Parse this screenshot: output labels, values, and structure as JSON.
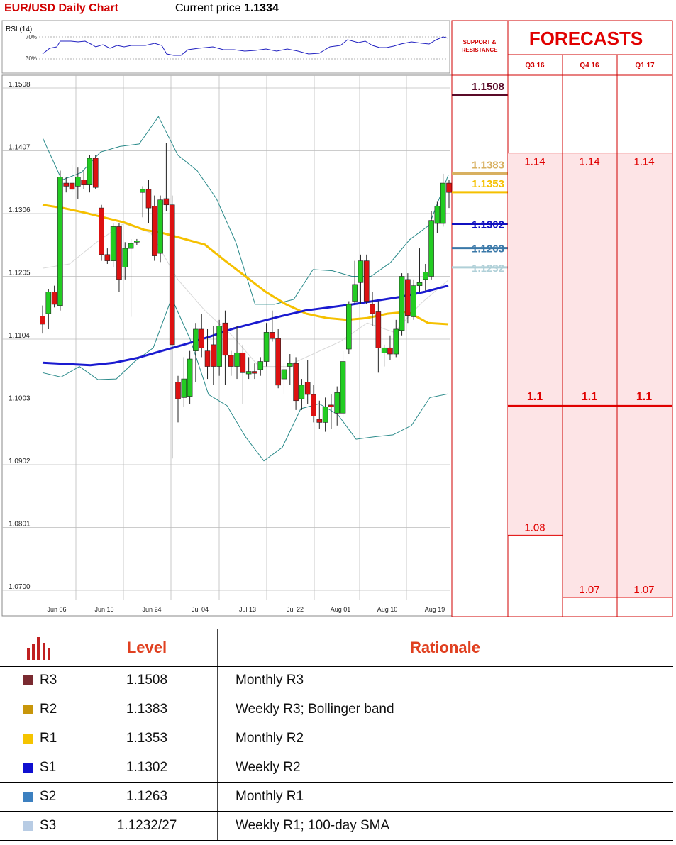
{
  "header": {
    "title": "EUR/USD Daily Chart",
    "price_label": "Current price",
    "price_value": "1.1334"
  },
  "rsi": {
    "label": "RSI (14)",
    "levels": [
      "70%",
      "30%"
    ]
  },
  "sr_panel": {
    "title_line1": "SUPPORT &",
    "title_line2": "RESISTANCE"
  },
  "forecasts": {
    "title": "FORECASTS",
    "quarters": [
      "Q3 16",
      "Q4 16",
      "Q1 17"
    ],
    "accent_color": "#e00000",
    "shade_color": "#fde4e6"
  },
  "chart_data": {
    "type": "candlestick",
    "y_ticks": [
      "1.1508",
      "1.1407",
      "1.1306",
      "1.1205",
      "1.1104",
      "1.1003",
      "1.0902",
      "1.0801",
      "1.0700"
    ],
    "ylim": [
      1.07,
      1.1508
    ],
    "x_ticks": [
      "Jun 06",
      "Jun 15",
      "Jun 24",
      "Jul 04",
      "Jul 13",
      "Jul 22",
      "Aug 01",
      "Aug 10",
      "Aug 19"
    ],
    "grid": true,
    "candles": [
      [
        1.1141,
        1.1158,
        1.1113,
        1.1128
      ],
      [
        1.1145,
        1.1185,
        1.112,
        1.118
      ],
      [
        1.118,
        1.119,
        1.1155,
        1.116
      ],
      [
        1.1158,
        1.1375,
        1.115,
        1.1365
      ],
      [
        1.1355,
        1.1365,
        1.134,
        1.135
      ],
      [
        1.1355,
        1.1385,
        1.134,
        1.1345
      ],
      [
        1.135,
        1.138,
        1.133,
        1.1365
      ],
      [
        1.136,
        1.1375,
        1.1345,
        1.1352
      ],
      [
        1.1352,
        1.14,
        1.134,
        1.1395
      ],
      [
        1.1395,
        1.14,
        1.1345,
        1.1348
      ],
      [
        1.1315,
        1.132,
        1.123,
        1.124
      ],
      [
        1.124,
        1.125,
        1.1225,
        1.123
      ],
      [
        1.123,
        1.129,
        1.122,
        1.1285
      ],
      [
        1.1285,
        1.129,
        1.118,
        1.12
      ],
      [
        1.122,
        1.126,
        1.12,
        1.125
      ],
      [
        1.125,
        1.1265,
        1.114,
        1.1258
      ],
      [
        1.126,
        1.1265,
        1.1255,
        1.1262
      ],
      [
        1.134,
        1.135,
        1.13,
        1.1345
      ],
      [
        1.1345,
        1.136,
        1.129,
        1.1315
      ],
      [
        1.1318,
        1.1335,
        1.123,
        1.1238
      ],
      [
        1.1242,
        1.1335,
        1.1228,
        1.1328
      ],
      [
        1.133,
        1.142,
        1.131,
        1.132
      ],
      [
        1.132,
        1.1335,
        1.0912,
        1.1095
      ],
      [
        1.1035,
        1.1045,
        1.097,
        1.1008
      ],
      [
        1.101,
        1.1075,
        1.0995,
        1.104
      ],
      [
        1.1012,
        1.1085,
        1.1,
        1.1072
      ],
      [
        1.1085,
        1.113,
        1.1035,
        1.112
      ],
      [
        1.112,
        1.1145,
        1.1075,
        1.109
      ],
      [
        1.1085,
        1.112,
        1.104,
        1.106
      ],
      [
        1.1095,
        1.1125,
        1.103,
        1.106
      ],
      [
        1.106,
        1.1135,
        1.1045,
        1.1125
      ],
      [
        1.113,
        1.115,
        1.103,
        1.1078
      ],
      [
        1.1078,
        1.1085,
        1.1045,
        1.106
      ],
      [
        1.106,
        1.1125,
        1.104,
        1.1082
      ],
      [
        1.1082,
        1.1095,
        1.1,
        1.105
      ],
      [
        1.1048,
        1.1075,
        1.104,
        1.1052
      ],
      [
        1.1052,
        1.1065,
        1.104,
        1.1049
      ],
      [
        1.1055,
        1.1075,
        1.1045,
        1.1068
      ],
      [
        1.1068,
        1.113,
        1.106,
        1.1115
      ],
      [
        1.1115,
        1.115,
        1.11,
        1.1105
      ],
      [
        1.1105,
        1.112,
        1.1025,
        1.103
      ],
      [
        1.104,
        1.1065,
        1.1015,
        1.1055
      ],
      [
        1.106,
        1.108,
        1.103,
        1.1065
      ],
      [
        1.1065,
        1.1075,
        1.099,
        1.1005
      ],
      [
        1.1008,
        1.104,
        1.099,
        1.103
      ],
      [
        1.1035,
        1.107,
        1.1,
        1.1015
      ],
      [
        1.1015,
        1.103,
        1.097,
        1.098
      ],
      [
        1.0975,
        1.1005,
        1.096,
        1.097
      ],
      [
        1.097,
        1.101,
        1.0955,
        1.0995
      ],
      [
        1.0998,
        1.1015,
        1.096,
        1.0995
      ],
      [
        1.0985,
        1.1028,
        1.0965,
        1.1018
      ],
      [
        1.0985,
        1.1085,
        1.0978,
        1.1068
      ],
      [
        1.1088,
        1.1165,
        1.108,
        1.116
      ],
      [
        1.1165,
        1.123,
        1.116,
        1.1192
      ],
      [
        1.1195,
        1.124,
        1.116,
        1.123
      ],
      [
        1.123,
        1.124,
        1.116,
        1.1165
      ],
      [
        1.116,
        1.118,
        1.1125,
        1.1145
      ],
      [
        1.1148,
        1.1165,
        1.105,
        1.109
      ],
      [
        1.1082,
        1.1095,
        1.106,
        1.109
      ],
      [
        1.109,
        1.111,
        1.107,
        1.108
      ],
      [
        1.108,
        1.1135,
        1.1075,
        1.112
      ],
      [
        1.1118,
        1.121,
        1.111,
        1.1205
      ],
      [
        1.12,
        1.121,
        1.113,
        1.1142
      ],
      [
        1.114,
        1.12,
        1.1135,
        1.119
      ],
      [
        1.119,
        1.125,
        1.118,
        1.1195
      ],
      [
        1.12,
        1.1225,
        1.1182,
        1.1212
      ],
      [
        1.1205,
        1.131,
        1.12,
        1.1295
      ],
      [
        1.129,
        1.1325,
        1.1275,
        1.1318
      ],
      [
        1.129,
        1.137,
        1.1285,
        1.1355
      ],
      [
        1.1355,
        1.136,
        1.1315,
        1.134
      ]
    ],
    "sma_yellow": [
      1.132,
      1.1315,
      1.1308,
      1.13,
      1.1292,
      1.128,
      1.1274,
      1.1265,
      1.1256,
      1.123,
      1.1205,
      1.118,
      1.116,
      1.1145,
      1.1138,
      1.1135,
      1.1138,
      1.1145,
      1.1148,
      1.113,
      1.1128
    ],
    "sma_blue": [
      1.1066,
      1.1064,
      1.1062,
      1.1066,
      1.1074,
      1.1085,
      1.1096,
      1.1108,
      1.1121,
      1.1131,
      1.1141,
      1.115,
      1.1155,
      1.116,
      1.1166,
      1.1172,
      1.118,
      1.119
    ],
    "bb_upper": [
      1.1428,
      1.136,
      1.1372,
      1.1405,
      1.1414,
      1.1418,
      1.1462,
      1.14,
      1.1375,
      1.133,
      1.126,
      1.116,
      1.116,
      1.1168,
      1.1216,
      1.1214,
      1.1205,
      1.1205,
      1.1227,
      1.1264,
      1.1287,
      1.1368
    ],
    "bb_lower": [
      1.105,
      1.1043,
      1.106,
      1.1039,
      1.104,
      1.1068,
      1.109,
      1.117,
      1.1104,
      1.1015,
      1.0997,
      1.0947,
      1.0908,
      1.093,
      1.0992,
      1.1,
      1.0983,
      1.0943,
      1.0947,
      1.095,
      1.0965,
      1.101,
      1.1016
    ],
    "bb_mid": [
      1.1218,
      1.1225,
      1.126,
      1.129,
      1.1275,
      1.12,
      1.115,
      1.111,
      1.106,
      1.106,
      1.108,
      1.11,
      1.113,
      1.1115,
      1.1162,
      1.1199
    ]
  },
  "levels": [
    {
      "value": "1.1508",
      "y": 1.1508,
      "color": "#5a0a28"
    },
    {
      "value": "1.1383",
      "y": 1.1383,
      "color": "#d8b060"
    },
    {
      "value": "1.1353",
      "y": 1.1353,
      "color": "#f5c000"
    },
    {
      "value": "1.1302",
      "y": 1.1302,
      "color": "#1010c0"
    },
    {
      "value": "1.1263",
      "y": 1.1263,
      "color": "#3a78a8"
    },
    {
      "value": "1.1232",
      "y": 1.1232,
      "color": "#b0d0d8"
    }
  ],
  "forecast_values": {
    "high": [
      "1.14",
      "1.14",
      "1.14"
    ],
    "mid": [
      "1.1",
      "1.1",
      "1.1"
    ],
    "low": [
      "1.08",
      "1.07",
      "1.07"
    ],
    "high_y": 1.14,
    "mid_y": 1.1,
    "low_y": [
      1.08,
      1.07,
      1.07
    ]
  },
  "table": {
    "icon": "bar-chart-icon",
    "col_level": "Level",
    "col_rationale": "Rationale",
    "rows": [
      {
        "name": "R3",
        "level": "1.1508",
        "rationale": "Monthly R3",
        "color": "#7a2a30"
      },
      {
        "name": "R2",
        "level": "1.1383",
        "rationale": "Weekly R3; Bollinger band",
        "color": "#c8960a"
      },
      {
        "name": "R1",
        "level": "1.1353",
        "rationale": "Monthly R2",
        "color": "#f5c400"
      },
      {
        "name": "S1",
        "level": "1.1302",
        "rationale": "Weekly R2",
        "color": "#1010d0"
      },
      {
        "name": "S2",
        "level": "1.1263",
        "rationale": "Monthly R1",
        "color": "#3c80c0"
      },
      {
        "name": "S3",
        "level": "1.1232/27",
        "rationale": "Weekly R1; 100-day SMA",
        "color": "#b8cce4"
      }
    ]
  }
}
